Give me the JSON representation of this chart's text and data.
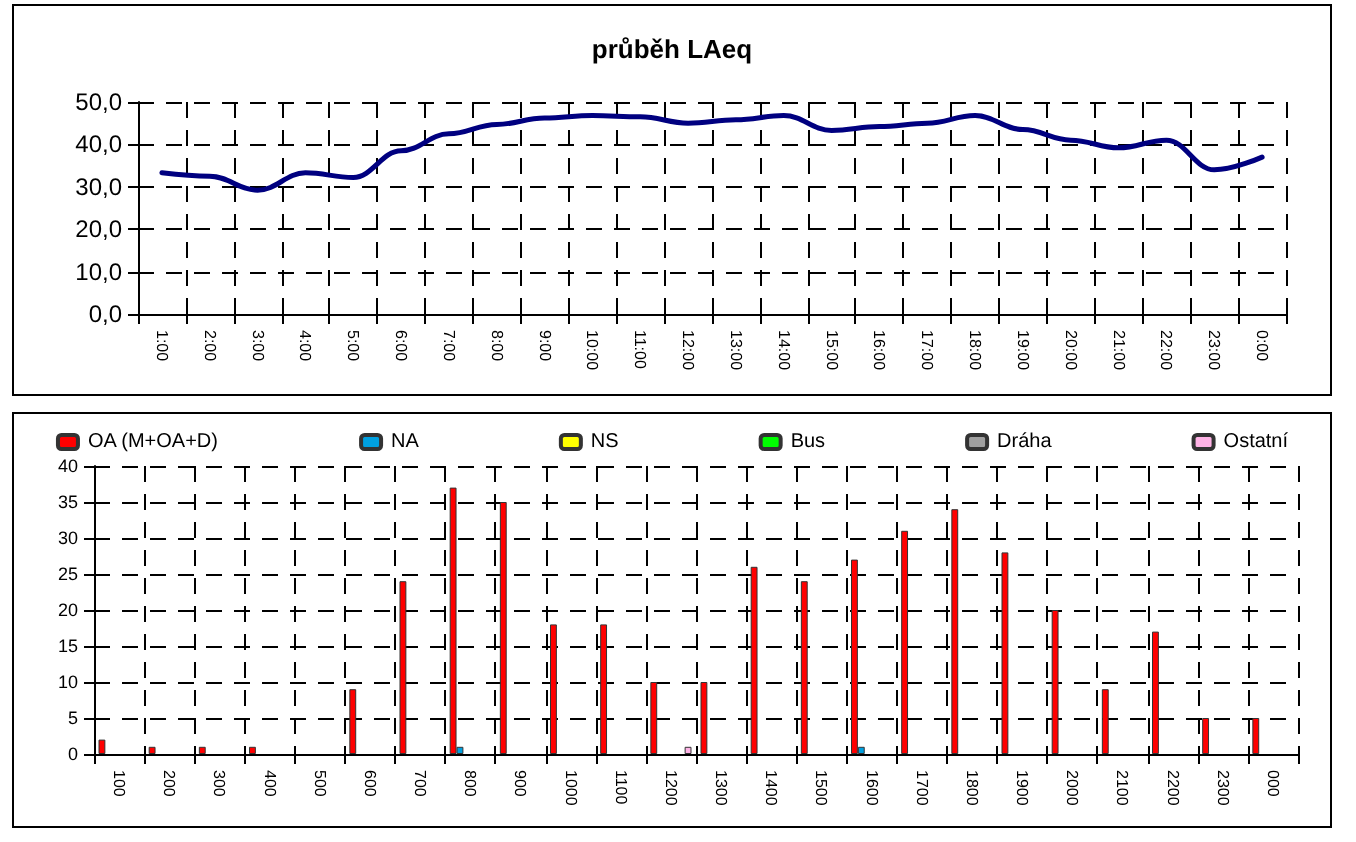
{
  "chart_data": [
    {
      "type": "line",
      "title": "průběh LAeq",
      "categories": [
        "1:00",
        "2:00",
        "3:00",
        "4:00",
        "5:00",
        "6:00",
        "7:00",
        "8:00",
        "9:00",
        "10:00",
        "11:00",
        "12:00",
        "13:00",
        "14:00",
        "15:00",
        "16:00",
        "17:00",
        "18:00",
        "19:00",
        "20:00",
        "21:00",
        "22:00",
        "23:00",
        "0:00"
      ],
      "series": [
        {
          "color": "#000080",
          "values": [
            33.3,
            32.5,
            29.2,
            33.3,
            32.2,
            38.5,
            42.5,
            44.7,
            46.2,
            46.8,
            46.5,
            45.0,
            45.8,
            46.8,
            43.3,
            44.2,
            45.0,
            46.8,
            43.5,
            41.0,
            39.2,
            41.0,
            34.0,
            37.0
          ]
        }
      ],
      "ylim": [
        0,
        50
      ],
      "yticks": [
        {
          "value": 0,
          "label": "0,0"
        },
        {
          "value": 10,
          "label": "10,0"
        },
        {
          "value": 20,
          "label": "20,0"
        },
        {
          "value": 30,
          "label": "30,0"
        },
        {
          "value": 40,
          "label": "40,0"
        },
        {
          "value": 50,
          "label": "50,0"
        }
      ],
      "grid": true,
      "marker": "none",
      "line_style": "solid",
      "legend": false
    },
    {
      "type": "bar",
      "categories": [
        "100",
        "200",
        "300",
        "400",
        "500",
        "600",
        "700",
        "800",
        "900",
        "1000",
        "1100",
        "1200",
        "1300",
        "1400",
        "1500",
        "1600",
        "1700",
        "1800",
        "1900",
        "2000",
        "2100",
        "2200",
        "2300",
        "000"
      ],
      "series": [
        {
          "name": "OA (M+OA+D)",
          "color": "#ff0000",
          "values": [
            2,
            1,
            1,
            1,
            null,
            9,
            24,
            37,
            35,
            18,
            18,
            10,
            10,
            26,
            24,
            27,
            31,
            34,
            28,
            20,
            9,
            17,
            5,
            5
          ]
        },
        {
          "name": "NA",
          "color": "#00a0e0",
          "values": [
            null,
            null,
            null,
            null,
            null,
            null,
            null,
            1,
            null,
            null,
            null,
            null,
            null,
            null,
            null,
            1,
            null,
            null,
            null,
            null,
            null,
            null,
            null,
            null
          ]
        },
        {
          "name": "NS",
          "color": "#ffff00",
          "values": [
            null,
            null,
            null,
            null,
            null,
            null,
            null,
            null,
            null,
            null,
            null,
            null,
            null,
            null,
            null,
            null,
            null,
            null,
            null,
            null,
            null,
            null,
            null,
            null
          ]
        },
        {
          "name": "Bus",
          "color": "#00ff00",
          "values": [
            null,
            null,
            null,
            null,
            null,
            null,
            null,
            null,
            null,
            null,
            null,
            null,
            null,
            null,
            null,
            null,
            null,
            null,
            null,
            null,
            null,
            null,
            null,
            null
          ]
        },
        {
          "name": "Dráha",
          "color": "#a0a0a0",
          "values": [
            null,
            null,
            null,
            null,
            null,
            null,
            null,
            null,
            null,
            null,
            null,
            null,
            null,
            null,
            null,
            null,
            null,
            null,
            null,
            null,
            null,
            null,
            null,
            null
          ]
        },
        {
          "name": "Ostatní",
          "color": "#ffb3e6",
          "values": [
            null,
            null,
            null,
            null,
            null,
            null,
            null,
            null,
            null,
            null,
            null,
            1,
            null,
            null,
            null,
            null,
            null,
            null,
            null,
            null,
            null,
            null,
            null,
            null
          ]
        }
      ],
      "ylim": [
        0,
        40
      ],
      "yticks": [
        0,
        5,
        10,
        15,
        20,
        25,
        30,
        35,
        40
      ],
      "grid": true,
      "legend": "top"
    }
  ]
}
